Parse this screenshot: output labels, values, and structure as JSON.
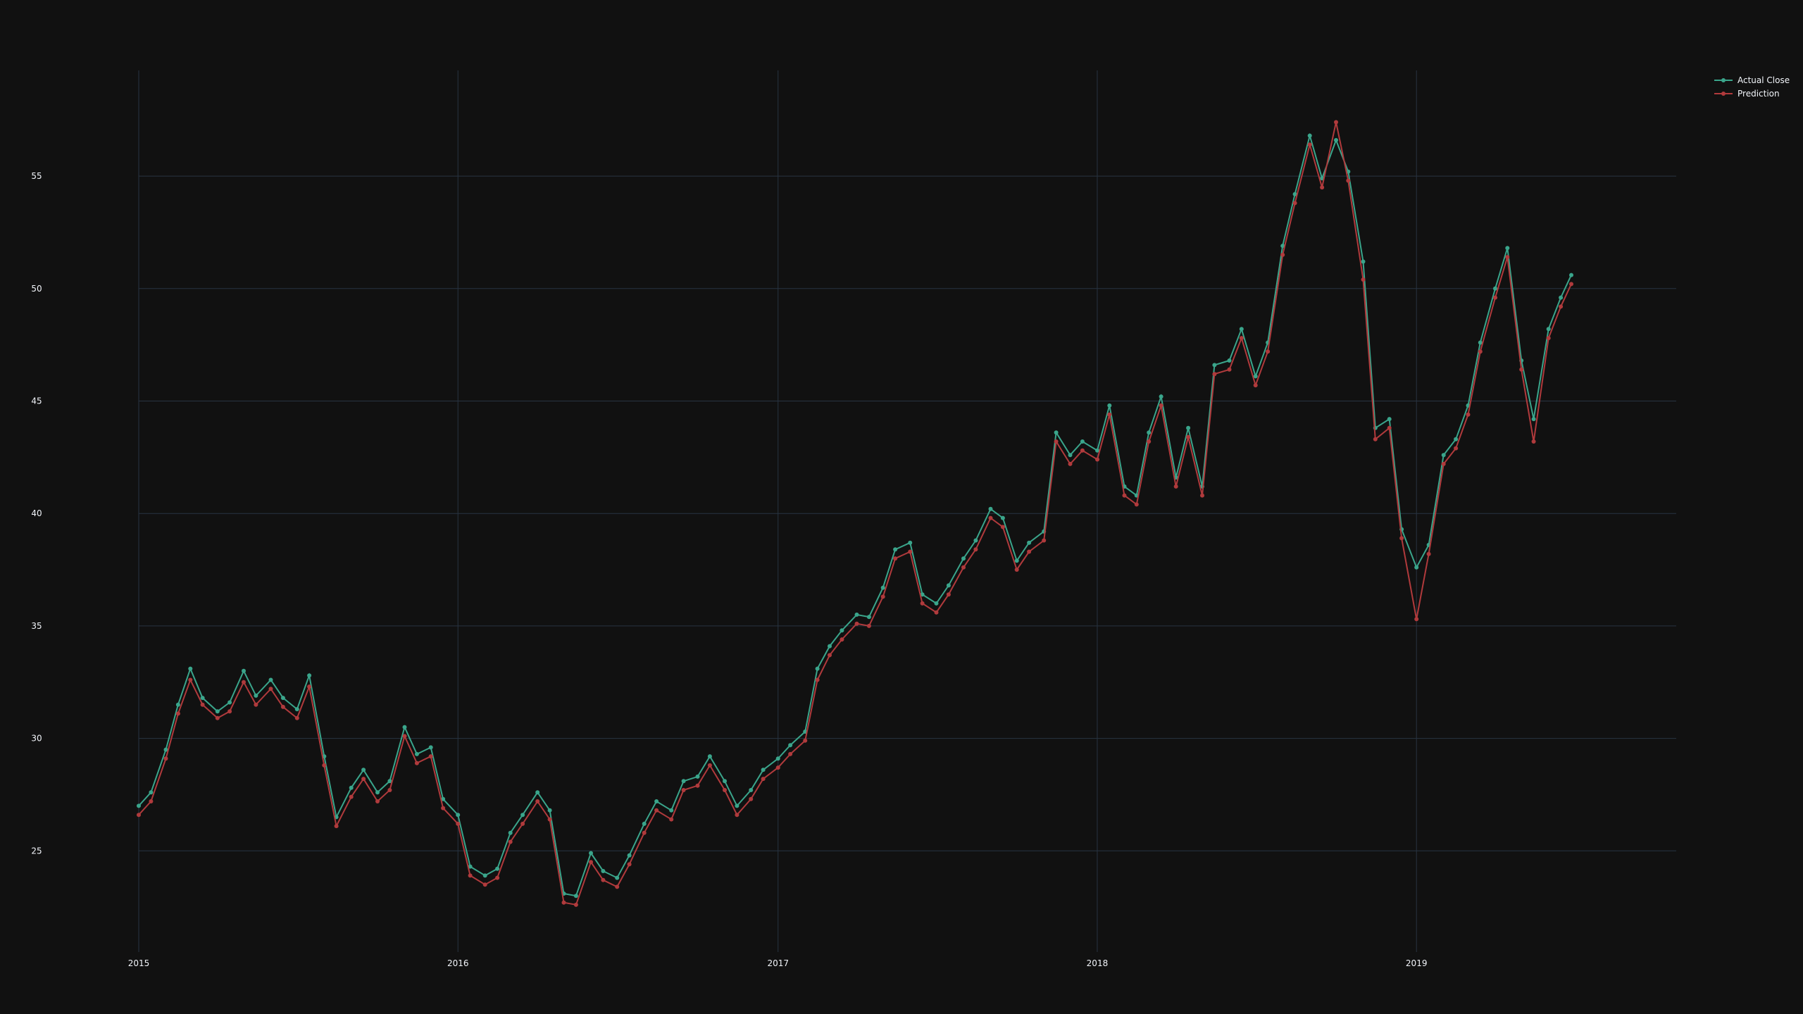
{
  "colors": {
    "background": "#111111",
    "grid": "#283442",
    "text": "#f2f5fa",
    "actual": "#3aa58b",
    "prediction": "#b03a3c"
  },
  "chart_data": {
    "type": "line",
    "title": "",
    "xlabel": "",
    "ylabel": "",
    "x_ticks": [
      "2015",
      "2016",
      "2017",
      "2018",
      "2019"
    ],
    "y_ticks": [
      "25",
      "30",
      "35",
      "40",
      "45",
      "50",
      "55"
    ],
    "xlim": [
      "2015-01-01",
      "2019-10-25"
    ],
    "ylim": [
      20.5,
      59.7
    ],
    "grid": true,
    "legend_position": "top-right",
    "markers": true,
    "series": [
      {
        "name": "Actual Close",
        "color": "#3aa58b",
        "points": [
          [
            "2015-01-01",
            27.0
          ],
          [
            "2015-01-15",
            27.6
          ],
          [
            "2015-02-01",
            29.5
          ],
          [
            "2015-02-15",
            31.5
          ],
          [
            "2015-03-01",
            33.1
          ],
          [
            "2015-03-15",
            31.8
          ],
          [
            "2015-04-01",
            31.2
          ],
          [
            "2015-04-15",
            31.6
          ],
          [
            "2015-05-01",
            33.0
          ],
          [
            "2015-05-15",
            31.9
          ],
          [
            "2015-06-01",
            32.6
          ],
          [
            "2015-06-15",
            31.8
          ],
          [
            "2015-07-01",
            31.3
          ],
          [
            "2015-07-15",
            32.8
          ],
          [
            "2015-08-01",
            29.2
          ],
          [
            "2015-08-15",
            26.5
          ],
          [
            "2015-09-01",
            27.8
          ],
          [
            "2015-09-15",
            28.6
          ],
          [
            "2015-10-01",
            27.6
          ],
          [
            "2015-10-15",
            28.1
          ],
          [
            "2015-11-01",
            30.5
          ],
          [
            "2015-11-15",
            29.3
          ],
          [
            "2015-12-01",
            29.6
          ],
          [
            "2015-12-15",
            27.3
          ],
          [
            "2016-01-01",
            26.6
          ],
          [
            "2016-01-15",
            24.3
          ],
          [
            "2016-02-01",
            23.9
          ],
          [
            "2016-02-15",
            24.2
          ],
          [
            "2016-03-01",
            25.8
          ],
          [
            "2016-03-15",
            26.6
          ],
          [
            "2016-04-01",
            27.6
          ],
          [
            "2016-04-15",
            26.8
          ],
          [
            "2016-05-01",
            23.1
          ],
          [
            "2016-05-15",
            23.0
          ],
          [
            "2016-06-01",
            24.9
          ],
          [
            "2016-06-15",
            24.1
          ],
          [
            "2016-07-01",
            23.8
          ],
          [
            "2016-07-15",
            24.8
          ],
          [
            "2016-08-01",
            26.2
          ],
          [
            "2016-08-15",
            27.2
          ],
          [
            "2016-09-01",
            26.8
          ],
          [
            "2016-09-15",
            28.1
          ],
          [
            "2016-10-01",
            28.3
          ],
          [
            "2016-10-15",
            29.2
          ],
          [
            "2016-11-01",
            28.1
          ],
          [
            "2016-11-15",
            27.0
          ],
          [
            "2016-12-01",
            27.7
          ],
          [
            "2016-12-15",
            28.6
          ],
          [
            "2017-01-01",
            29.1
          ],
          [
            "2017-01-15",
            29.7
          ],
          [
            "2017-02-01",
            30.3
          ],
          [
            "2017-02-15",
            33.1
          ],
          [
            "2017-03-01",
            34.1
          ],
          [
            "2017-03-15",
            34.8
          ],
          [
            "2017-04-01",
            35.5
          ],
          [
            "2017-04-15",
            35.4
          ],
          [
            "2017-05-01",
            36.7
          ],
          [
            "2017-05-15",
            38.4
          ],
          [
            "2017-06-01",
            38.7
          ],
          [
            "2017-06-15",
            36.4
          ],
          [
            "2017-07-01",
            36.0
          ],
          [
            "2017-07-15",
            36.8
          ],
          [
            "2017-08-01",
            38.0
          ],
          [
            "2017-08-15",
            38.8
          ],
          [
            "2017-09-01",
            40.2
          ],
          [
            "2017-09-15",
            39.8
          ],
          [
            "2017-10-01",
            37.9
          ],
          [
            "2017-10-15",
            38.7
          ],
          [
            "2017-11-01",
            39.2
          ],
          [
            "2017-11-15",
            43.6
          ],
          [
            "2017-12-01",
            42.6
          ],
          [
            "2017-12-15",
            43.2
          ],
          [
            "2018-01-01",
            42.8
          ],
          [
            "2018-01-15",
            44.8
          ],
          [
            "2018-02-01",
            41.2
          ],
          [
            "2018-02-15",
            40.8
          ],
          [
            "2018-03-01",
            43.6
          ],
          [
            "2018-03-15",
            45.2
          ],
          [
            "2018-04-01",
            41.6
          ],
          [
            "2018-04-15",
            43.8
          ],
          [
            "2018-05-01",
            41.2
          ],
          [
            "2018-05-15",
            46.6
          ],
          [
            "2018-06-01",
            46.8
          ],
          [
            "2018-06-15",
            48.2
          ],
          [
            "2018-07-01",
            46.1
          ],
          [
            "2018-07-15",
            47.6
          ],
          [
            "2018-08-01",
            51.9
          ],
          [
            "2018-08-15",
            54.2
          ],
          [
            "2018-09-01",
            56.8
          ],
          [
            "2018-09-15",
            54.9
          ],
          [
            "2018-10-01",
            56.6
          ],
          [
            "2018-10-15",
            55.2
          ],
          [
            "2018-11-01",
            51.2
          ],
          [
            "2018-11-15",
            43.8
          ],
          [
            "2018-12-01",
            44.2
          ],
          [
            "2018-12-15",
            39.3
          ],
          [
            "2019-01-01",
            37.6
          ],
          [
            "2019-01-15",
            38.6
          ],
          [
            "2019-02-01",
            42.6
          ],
          [
            "2019-02-15",
            43.3
          ],
          [
            "2019-03-01",
            44.8
          ],
          [
            "2019-03-15",
            47.6
          ],
          [
            "2019-04-01",
            50.0
          ],
          [
            "2019-04-15",
            51.8
          ],
          [
            "2019-05-01",
            46.8
          ],
          [
            "2019-05-15",
            44.2
          ],
          [
            "2019-06-01",
            48.2
          ],
          [
            "2019-06-15",
            49.6
          ],
          [
            "2019-06-27",
            50.6
          ]
        ]
      },
      {
        "name": "Prediction",
        "color": "#b03a3c",
        "points": [
          [
            "2015-01-01",
            26.6
          ],
          [
            "2015-01-15",
            27.2
          ],
          [
            "2015-02-01",
            29.1
          ],
          [
            "2015-02-15",
            31.1
          ],
          [
            "2015-03-01",
            32.6
          ],
          [
            "2015-03-15",
            31.5
          ],
          [
            "2015-04-01",
            30.9
          ],
          [
            "2015-04-15",
            31.2
          ],
          [
            "2015-05-01",
            32.5
          ],
          [
            "2015-05-15",
            31.5
          ],
          [
            "2015-06-01",
            32.2
          ],
          [
            "2015-06-15",
            31.4
          ],
          [
            "2015-07-01",
            30.9
          ],
          [
            "2015-07-15",
            32.3
          ],
          [
            "2015-08-01",
            28.8
          ],
          [
            "2015-08-15",
            26.1
          ],
          [
            "2015-09-01",
            27.4
          ],
          [
            "2015-09-15",
            28.2
          ],
          [
            "2015-10-01",
            27.2
          ],
          [
            "2015-10-15",
            27.7
          ],
          [
            "2015-11-01",
            30.1
          ],
          [
            "2015-11-15",
            28.9
          ],
          [
            "2015-12-01",
            29.2
          ],
          [
            "2015-12-15",
            26.9
          ],
          [
            "2016-01-01",
            26.2
          ],
          [
            "2016-01-15",
            23.9
          ],
          [
            "2016-02-01",
            23.5
          ],
          [
            "2016-02-15",
            23.8
          ],
          [
            "2016-03-01",
            25.4
          ],
          [
            "2016-03-15",
            26.2
          ],
          [
            "2016-04-01",
            27.2
          ],
          [
            "2016-04-15",
            26.4
          ],
          [
            "2016-05-01",
            22.7
          ],
          [
            "2016-05-15",
            22.6
          ],
          [
            "2016-06-01",
            24.5
          ],
          [
            "2016-06-15",
            23.7
          ],
          [
            "2016-07-01",
            23.4
          ],
          [
            "2016-07-15",
            24.4
          ],
          [
            "2016-08-01",
            25.8
          ],
          [
            "2016-08-15",
            26.8
          ],
          [
            "2016-09-01",
            26.4
          ],
          [
            "2016-09-15",
            27.7
          ],
          [
            "2016-10-01",
            27.9
          ],
          [
            "2016-10-15",
            28.8
          ],
          [
            "2016-11-01",
            27.7
          ],
          [
            "2016-11-15",
            26.6
          ],
          [
            "2016-12-01",
            27.3
          ],
          [
            "2016-12-15",
            28.2
          ],
          [
            "2017-01-01",
            28.7
          ],
          [
            "2017-01-15",
            29.3
          ],
          [
            "2017-02-01",
            29.9
          ],
          [
            "2017-02-15",
            32.6
          ],
          [
            "2017-03-01",
            33.7
          ],
          [
            "2017-03-15",
            34.4
          ],
          [
            "2017-04-01",
            35.1
          ],
          [
            "2017-04-15",
            35.0
          ],
          [
            "2017-05-01",
            36.3
          ],
          [
            "2017-05-15",
            38.0
          ],
          [
            "2017-06-01",
            38.3
          ],
          [
            "2017-06-15",
            36.0
          ],
          [
            "2017-07-01",
            35.6
          ],
          [
            "2017-07-15",
            36.4
          ],
          [
            "2017-08-01",
            37.6
          ],
          [
            "2017-08-15",
            38.4
          ],
          [
            "2017-09-01",
            39.8
          ],
          [
            "2017-09-15",
            39.4
          ],
          [
            "2017-10-01",
            37.5
          ],
          [
            "2017-10-15",
            38.3
          ],
          [
            "2017-11-01",
            38.8
          ],
          [
            "2017-11-15",
            43.2
          ],
          [
            "2017-12-01",
            42.2
          ],
          [
            "2017-12-15",
            42.8
          ],
          [
            "2018-01-01",
            42.4
          ],
          [
            "2018-01-15",
            44.4
          ],
          [
            "2018-02-01",
            40.8
          ],
          [
            "2018-02-15",
            40.4
          ],
          [
            "2018-03-01",
            43.2
          ],
          [
            "2018-03-15",
            44.8
          ],
          [
            "2018-04-01",
            41.2
          ],
          [
            "2018-04-15",
            43.4
          ],
          [
            "2018-05-01",
            40.8
          ],
          [
            "2018-05-15",
            46.2
          ],
          [
            "2018-06-01",
            46.4
          ],
          [
            "2018-06-15",
            47.8
          ],
          [
            "2018-07-01",
            45.7
          ],
          [
            "2018-07-15",
            47.2
          ],
          [
            "2018-08-01",
            51.5
          ],
          [
            "2018-08-15",
            53.8
          ],
          [
            "2018-09-01",
            56.4
          ],
          [
            "2018-09-15",
            54.5
          ],
          [
            "2018-10-01",
            57.4
          ],
          [
            "2018-10-15",
            54.8
          ],
          [
            "2018-11-01",
            50.4
          ],
          [
            "2018-11-15",
            43.3
          ],
          [
            "2018-12-01",
            43.8
          ],
          [
            "2018-12-15",
            38.9
          ],
          [
            "2019-01-01",
            35.3
          ],
          [
            "2019-01-15",
            38.2
          ],
          [
            "2019-02-01",
            42.2
          ],
          [
            "2019-02-15",
            42.9
          ],
          [
            "2019-03-01",
            44.4
          ],
          [
            "2019-03-15",
            47.2
          ],
          [
            "2019-04-01",
            49.6
          ],
          [
            "2019-04-15",
            51.4
          ],
          [
            "2019-05-01",
            46.4
          ],
          [
            "2019-05-15",
            43.2
          ],
          [
            "2019-06-01",
            47.8
          ],
          [
            "2019-06-15",
            49.2
          ],
          [
            "2019-06-27",
            50.2
          ]
        ]
      }
    ]
  }
}
